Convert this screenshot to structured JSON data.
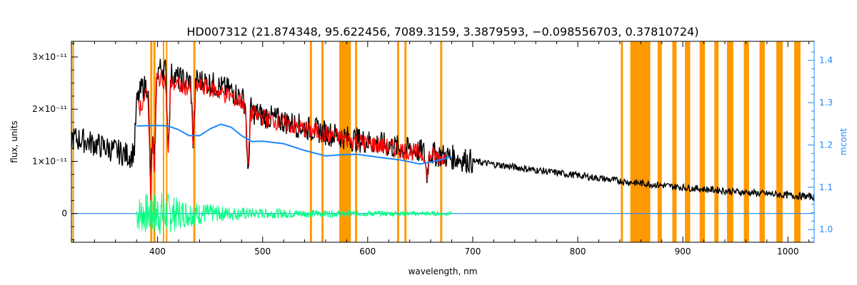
{
  "chart_data": {
    "type": "line",
    "title": "HD007312   (21.874348, 95.622456, 7089.3159, 3.3879593, −0.098556703, 0.37810724)",
    "xlabel": "wavelength, nm",
    "ylabel": "flux, units",
    "y2label": "mcont",
    "xlim": [
      318,
      1025
    ],
    "ylim": [
      -0.55,
      3.3
    ],
    "y_unit_exponent": -11,
    "y2lim": [
      0.97,
      1.445
    ],
    "x_ticks": [
      400,
      500,
      600,
      700,
      800,
      900,
      1000
    ],
    "y_ticks": [
      {
        "value": 0,
        "label": "0"
      },
      {
        "value": 1,
        "label": "1×10⁻¹¹"
      },
      {
        "value": 2,
        "label": "2×10⁻¹¹"
      },
      {
        "value": 3,
        "label": "3×10⁻¹¹"
      }
    ],
    "y2_ticks": [
      1.0,
      1.1,
      1.2,
      1.3,
      1.4
    ],
    "masked_regions_nm": [
      [
        319,
        320
      ],
      [
        393,
        395
      ],
      [
        396,
        398
      ],
      [
        405,
        406
      ],
      [
        408,
        409
      ],
      [
        434,
        436
      ],
      [
        545,
        547
      ],
      [
        556,
        558
      ],
      [
        573,
        584
      ],
      [
        588,
        590
      ],
      [
        628,
        630
      ],
      [
        635,
        637
      ],
      [
        669,
        671
      ],
      [
        841,
        843
      ],
      [
        850,
        869
      ],
      [
        876,
        880
      ],
      [
        890,
        894
      ],
      [
        902,
        907
      ],
      [
        916,
        921
      ],
      [
        930,
        934
      ],
      [
        942,
        948
      ],
      [
        958,
        963
      ],
      [
        973,
        978
      ],
      [
        989,
        995
      ],
      [
        1006,
        1012
      ]
    ],
    "series": [
      {
        "color": "#000000",
        "axis": "left",
        "x": [
          318,
          330,
          345,
          360,
          375,
          378,
          380,
          385,
          390,
          395,
          400,
          405,
          410,
          420,
          430,
          440,
          450,
          460,
          470,
          480,
          484,
          486,
          488,
          490,
          500,
          520,
          540,
          560,
          580,
          600,
          620,
          640,
          655,
          660,
          680,
          700,
          750,
          800,
          850,
          870,
          900,
          950,
          1000,
          1025
        ],
        "y": [
          1.45,
          1.4,
          1.3,
          1.2,
          1.1,
          1.25,
          2.1,
          2.4,
          2.45,
          2.5,
          2.75,
          2.8,
          2.7,
          2.58,
          2.52,
          2.55,
          2.5,
          2.42,
          2.35,
          2.22,
          2.1,
          1.8,
          2.05,
          1.95,
          1.88,
          1.77,
          1.65,
          1.55,
          1.45,
          1.38,
          1.3,
          1.22,
          1.17,
          1.15,
          1.08,
          1.0,
          0.86,
          0.73,
          0.6,
          0.56,
          0.5,
          0.42,
          0.35,
          0.32
        ]
      },
      {
        "color": "#ff0000",
        "axis": "left",
        "x": [
          382,
          390,
          400,
          410,
          420,
          430,
          440,
          450,
          460,
          470,
          480,
          490,
          500,
          520,
          540,
          560,
          580,
          600,
          620,
          640,
          660,
          675
        ],
        "y": [
          2.0,
          2.3,
          2.6,
          2.55,
          2.45,
          2.42,
          2.45,
          2.4,
          2.32,
          2.24,
          2.14,
          1.9,
          1.85,
          1.73,
          1.62,
          1.52,
          1.42,
          1.35,
          1.27,
          1.19,
          1.12,
          1.06
        ]
      },
      {
        "color": "#1e88ff",
        "axis": "right",
        "x": [
          380,
          400,
          410,
          420,
          430,
          440,
          450,
          460,
          470,
          480,
          490,
          500,
          520,
          540,
          560,
          575,
          590,
          610,
          630,
          650,
          665,
          680
        ],
        "y": [
          1.245,
          1.246,
          1.245,
          1.236,
          1.222,
          1.222,
          1.238,
          1.249,
          1.242,
          1.222,
          1.208,
          1.209,
          1.203,
          1.187,
          1.174,
          1.177,
          1.178,
          1.171,
          1.165,
          1.155,
          1.162,
          1.172
        ]
      },
      {
        "color": "#1e88ff",
        "axis": "left",
        "x": [
          318,
          1025
        ],
        "y": [
          0,
          0
        ]
      },
      {
        "color": "#00ff7f",
        "axis": "left",
        "x": [
          380,
          390,
          400,
          410,
          420,
          440,
          460,
          480,
          500,
          540,
          580,
          620,
          680
        ],
        "y": [
          0.35,
          0.4,
          0.45,
          0.4,
          0.3,
          0.22,
          0.15,
          0.12,
          0.1,
          0.08,
          0.06,
          0.05,
          0.04
        ]
      }
    ],
    "deep_lines_nm": [
      {
        "x": 393.4,
        "depth": 2.0
      },
      {
        "x": 396.8,
        "depth": 1.8
      },
      {
        "x": 410.2,
        "depth": 1.4
      },
      {
        "x": 434.0,
        "depth": 1.2
      },
      {
        "x": 486.1,
        "depth": 1.2
      },
      {
        "x": 656.3,
        "depth": 0.45
      }
    ],
    "grid": false,
    "legend": "none"
  }
}
